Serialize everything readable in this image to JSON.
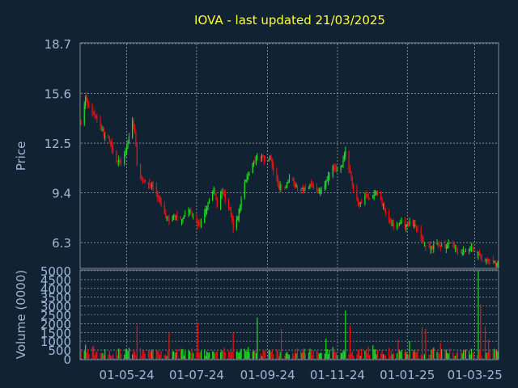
{
  "chart_data": {
    "type": "candlestick",
    "title": "IOVA - last updated 21/03/2025",
    "colors": {
      "background": "#112233",
      "axis_text": "#9fb8d6",
      "title": "#ffff33",
      "up": "#22dd22",
      "down": "#ee1111",
      "grid": "#ffffff",
      "frame": "#ffffff"
    },
    "grid": true,
    "price_panel": {
      "ylabel": "Price",
      "ylim": [
        4.75,
        18.7
      ],
      "yticks": [
        6.3,
        9.4,
        12.5,
        15.6,
        18.7
      ]
    },
    "volume_panel": {
      "ylabel": "Volume (0000)",
      "ylim": [
        0,
        5000
      ],
      "yticks": [
        0,
        500,
        1000,
        1500,
        2000,
        2500,
        3000,
        3500,
        4000,
        4500,
        5000
      ]
    },
    "xticks": [
      "01-05-24",
      "01-07-24",
      "01-09-24",
      "01-11-24",
      "01-01-25",
      "01-03-25"
    ],
    "x_domain": [
      "2024-03-22",
      "2025-03-21"
    ],
    "close_points": [
      [
        "2024-03-22",
        13.8
      ],
      [
        "2024-03-26",
        15.3
      ],
      [
        "2024-03-28",
        14.9
      ],
      [
        "2024-04-02",
        14.3
      ],
      [
        "2024-04-05",
        14.1
      ],
      [
        "2024-04-09",
        13.4
      ],
      [
        "2024-04-12",
        12.9
      ],
      [
        "2024-04-16",
        12.6
      ],
      [
        "2024-04-19",
        12.1
      ],
      [
        "2024-04-23",
        11.4
      ],
      [
        "2024-04-26",
        11.3
      ],
      [
        "2024-04-30",
        11.9
      ],
      [
        "2024-05-03",
        12.9
      ],
      [
        "2024-05-06",
        13.9
      ],
      [
        "2024-05-08",
        13.3
      ],
      [
        "2024-05-10",
        11.1
      ],
      [
        "2024-05-14",
        10.2
      ],
      [
        "2024-05-17",
        10.1
      ],
      [
        "2024-05-21",
        9.9
      ],
      [
        "2024-05-24",
        9.8
      ],
      [
        "2024-05-28",
        9.2
      ],
      [
        "2024-05-31",
        8.7
      ],
      [
        "2024-06-04",
        8.0
      ],
      [
        "2024-06-07",
        7.6
      ],
      [
        "2024-06-11",
        8.0
      ],
      [
        "2024-06-14",
        7.9
      ],
      [
        "2024-06-18",
        7.8
      ],
      [
        "2024-06-21",
        8.1
      ],
      [
        "2024-06-25",
        8.3
      ],
      [
        "2024-06-28",
        7.8
      ],
      [
        "2024-07-02",
        7.5
      ],
      [
        "2024-07-05",
        7.5
      ],
      [
        "2024-07-09",
        8.3
      ],
      [
        "2024-07-12",
        8.9
      ],
      [
        "2024-07-16",
        9.6
      ],
      [
        "2024-07-19",
        8.6
      ],
      [
        "2024-07-23",
        9.5
      ],
      [
        "2024-07-26",
        9.0
      ],
      [
        "2024-07-30",
        8.4
      ],
      [
        "2024-08-02",
        7.3
      ],
      [
        "2024-08-06",
        7.9
      ],
      [
        "2024-08-09",
        9.0
      ],
      [
        "2024-08-13",
        10.3
      ],
      [
        "2024-08-16",
        10.7
      ],
      [
        "2024-08-20",
        11.4
      ],
      [
        "2024-08-23",
        11.6
      ],
      [
        "2024-08-27",
        11.7
      ],
      [
        "2024-08-30",
        11.4
      ],
      [
        "2024-09-03",
        11.7
      ],
      [
        "2024-09-06",
        10.8
      ],
      [
        "2024-09-10",
        10.0
      ],
      [
        "2024-09-13",
        9.6
      ],
      [
        "2024-09-17",
        9.8
      ],
      [
        "2024-09-20",
        10.4
      ],
      [
        "2024-09-24",
        10.1
      ],
      [
        "2024-09-27",
        9.7
      ],
      [
        "2024-10-01",
        9.6
      ],
      [
        "2024-10-04",
        9.7
      ],
      [
        "2024-10-08",
        10.0
      ],
      [
        "2024-10-11",
        9.8
      ],
      [
        "2024-10-15",
        9.5
      ],
      [
        "2024-10-18",
        9.7
      ],
      [
        "2024-10-22",
        10.1
      ],
      [
        "2024-10-25",
        10.6
      ],
      [
        "2024-10-29",
        11.1
      ],
      [
        "2024-11-01",
        10.7
      ],
      [
        "2024-11-05",
        11.1
      ],
      [
        "2024-11-08",
        12.0
      ],
      [
        "2024-11-12",
        10.6
      ],
      [
        "2024-11-15",
        9.8
      ],
      [
        "2024-11-19",
        8.6
      ],
      [
        "2024-11-22",
        8.8
      ],
      [
        "2024-11-26",
        9.3
      ],
      [
        "2024-11-29",
        9.1
      ],
      [
        "2024-12-03",
        9.2
      ],
      [
        "2024-12-06",
        9.3
      ],
      [
        "2024-12-10",
        8.8
      ],
      [
        "2024-12-13",
        8.2
      ],
      [
        "2024-12-17",
        7.5
      ],
      [
        "2024-12-20",
        7.3
      ],
      [
        "2024-12-24",
        7.4
      ],
      [
        "2024-12-27",
        7.5
      ],
      [
        "2024-12-31",
        7.4
      ],
      [
        "2025-01-03",
        7.6
      ],
      [
        "2025-01-07",
        7.4
      ],
      [
        "2025-01-10",
        7.0
      ],
      [
        "2025-01-14",
        6.6
      ],
      [
        "2025-01-17",
        6.0
      ],
      [
        "2025-01-21",
        6.0
      ],
      [
        "2025-01-24",
        6.1
      ],
      [
        "2025-01-28",
        6.2
      ],
      [
        "2025-01-31",
        6.1
      ],
      [
        "2025-02-04",
        6.0
      ],
      [
        "2025-02-07",
        6.2
      ],
      [
        "2025-02-11",
        6.0
      ],
      [
        "2025-02-14",
        5.8
      ],
      [
        "2025-02-18",
        5.7
      ],
      [
        "2025-02-21",
        5.8
      ],
      [
        "2025-02-25",
        6.0
      ],
      [
        "2025-02-28",
        5.9
      ],
      [
        "2025-03-04",
        5.6
      ],
      [
        "2025-03-06",
        5.3
      ],
      [
        "2025-03-10",
        5.2
      ],
      [
        "2025-03-13",
        5.1
      ],
      [
        "2025-03-17",
        5.1
      ],
      [
        "2025-03-21",
        5.0
      ]
    ],
    "volume_spikes": [
      [
        "2024-05-10",
        1900
      ],
      [
        "2024-06-07",
        1450
      ],
      [
        "2024-07-02",
        2050
      ],
      [
        "2024-08-02",
        1500
      ],
      [
        "2024-08-23",
        2350
      ],
      [
        "2024-09-13",
        1700
      ],
      [
        "2024-10-22",
        1150
      ],
      [
        "2024-11-08",
        2750
      ],
      [
        "2024-11-12",
        1900
      ],
      [
        "2024-12-24",
        1100
      ],
      [
        "2025-01-14",
        1800
      ],
      [
        "2025-01-17",
        1700
      ],
      [
        "2025-03-04",
        5000
      ],
      [
        "2025-03-06",
        3100
      ],
      [
        "2025-03-10",
        1850
      ],
      [
        "2025-03-13",
        1100
      ]
    ]
  }
}
